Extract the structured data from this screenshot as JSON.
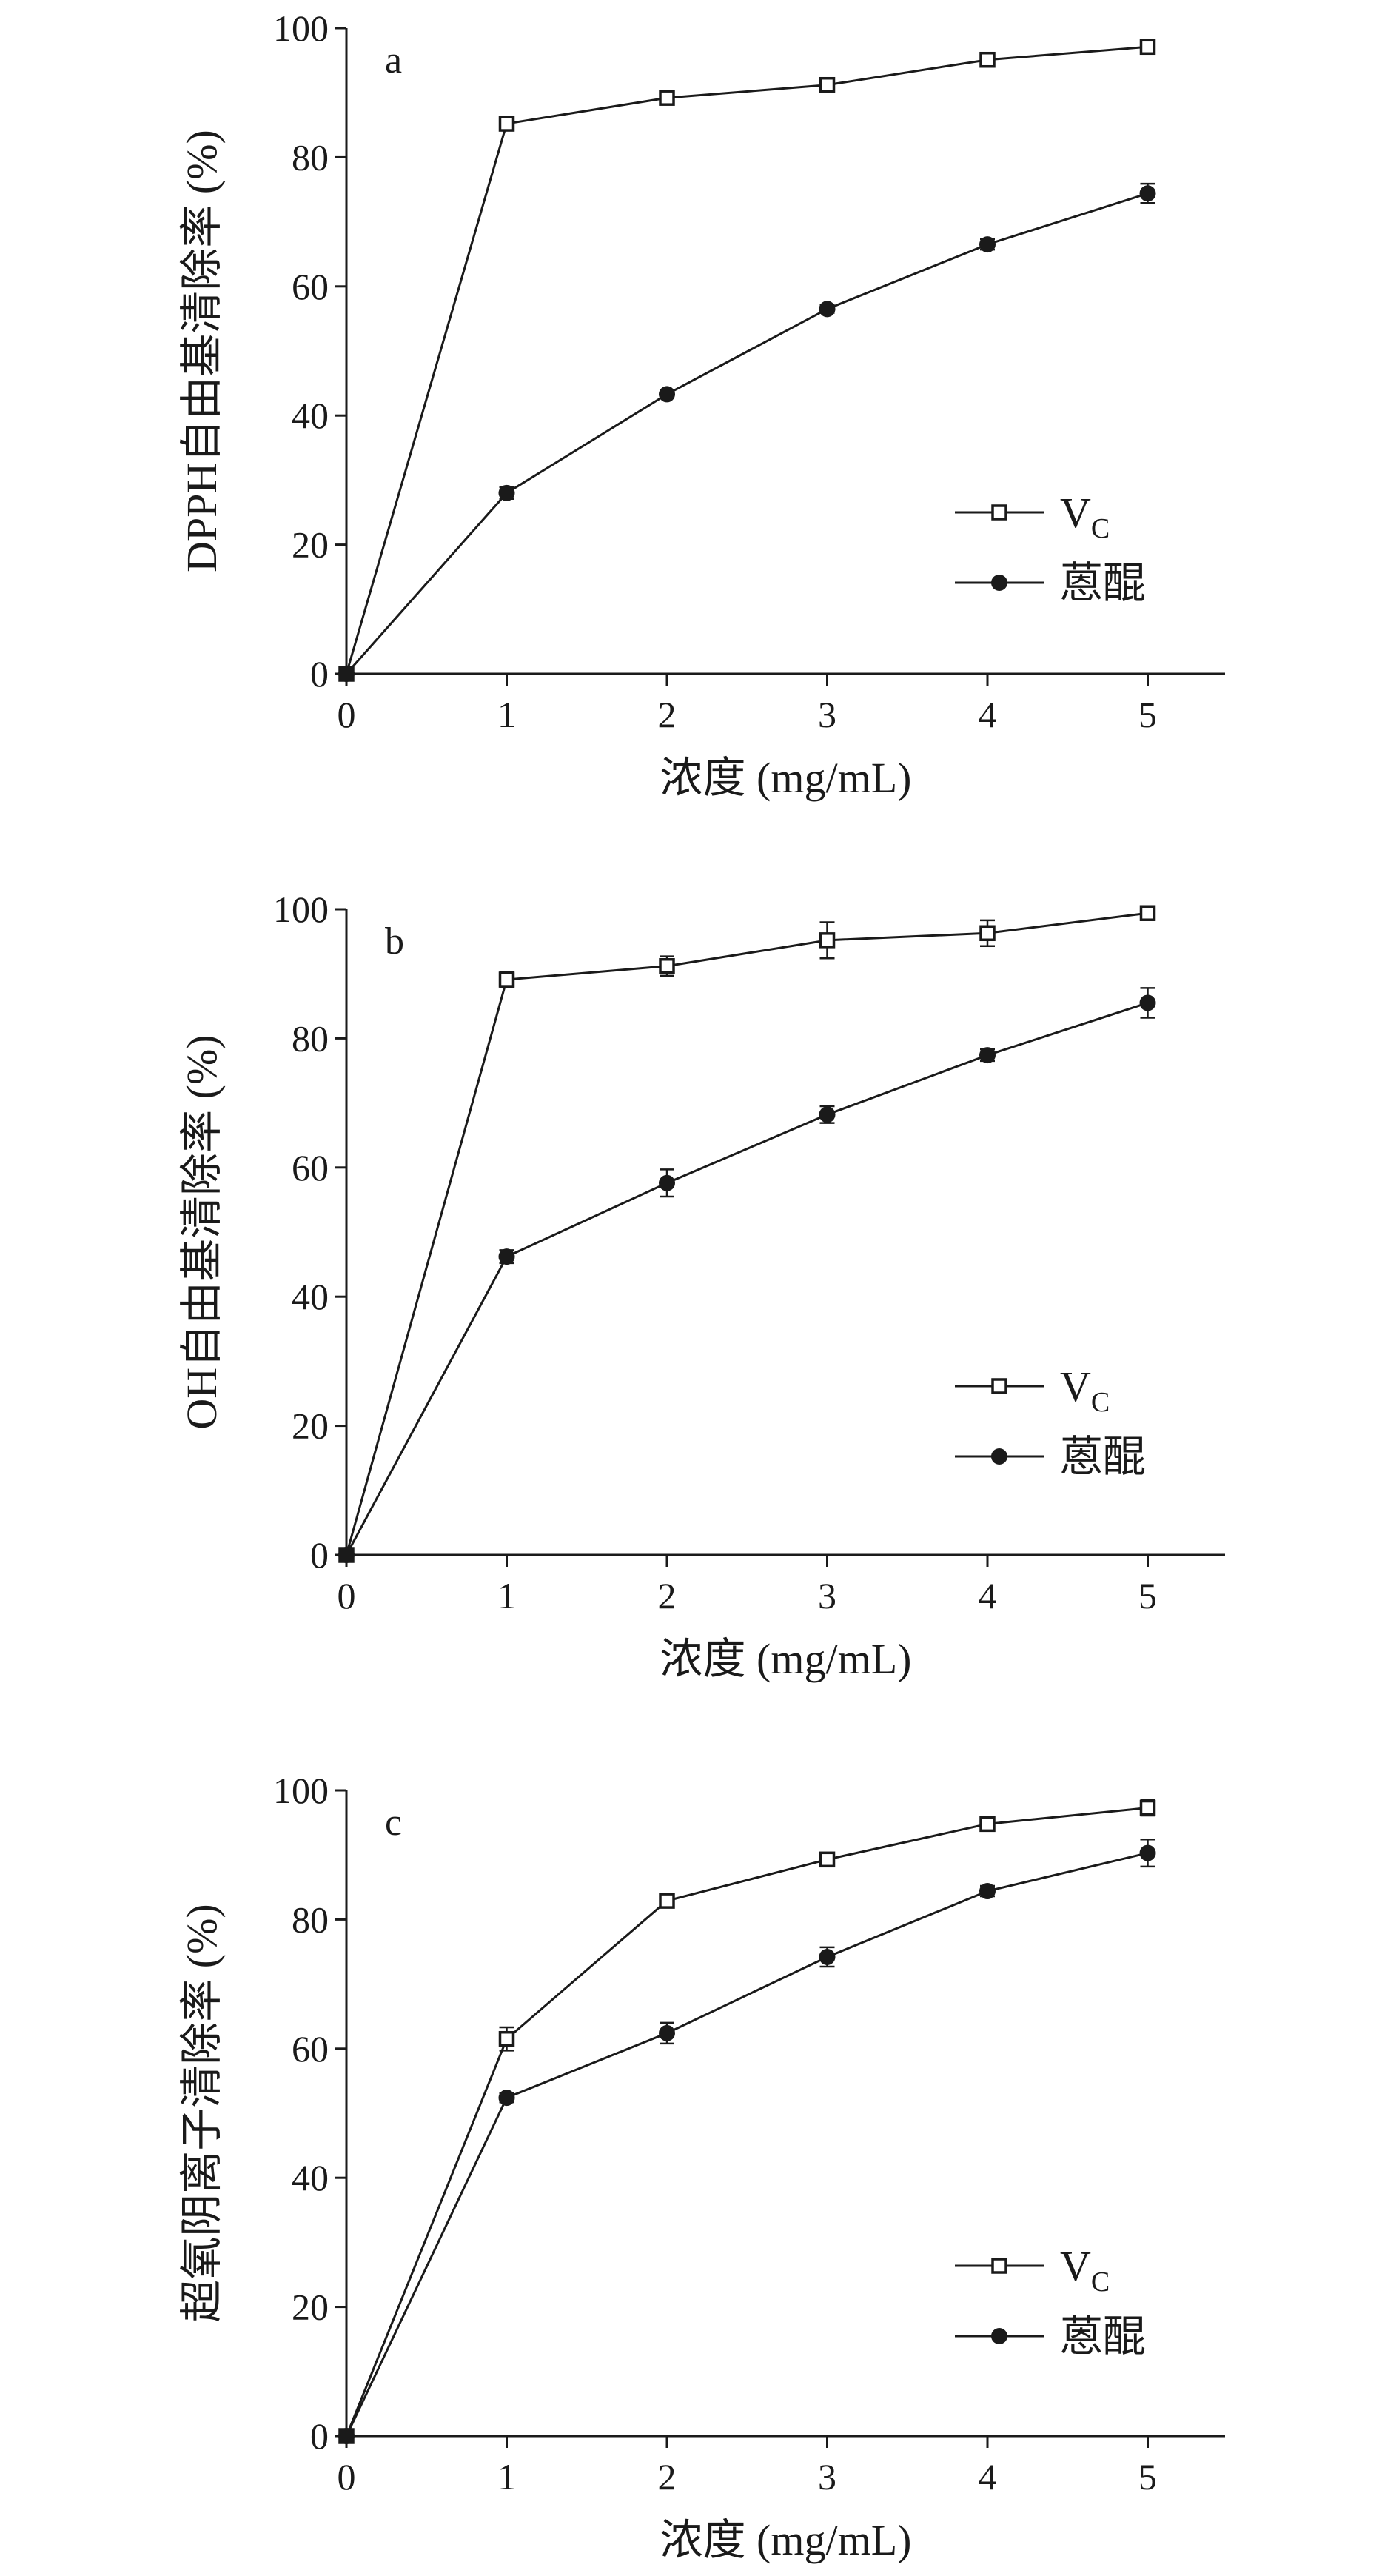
{
  "chart_data": [
    {
      "type": "line",
      "panel_label": "a",
      "xlabel": "浓度 (mg/mL)",
      "ylabel": "DPPH自由基清除率 (%)",
      "x": [
        0,
        1,
        2,
        3,
        4,
        5
      ],
      "xlim": [
        0,
        5.5
      ],
      "ylim": [
        0,
        100
      ],
      "xticks": [
        "0",
        "1",
        "2",
        "3",
        "4",
        "5"
      ],
      "yticks": [
        "0",
        "20",
        "40",
        "60",
        "80",
        "100"
      ],
      "legend_position": "lower-right",
      "grid": false,
      "series": [
        {
          "name": "V",
          "name_sub": "C",
          "marker": "open-square",
          "values": [
            0,
            85.2,
            89.2,
            91.2,
            95.1,
            97.1
          ],
          "errors": [
            0,
            0.6,
            0.6,
            0.6,
            0.6,
            0.6
          ]
        },
        {
          "name": "蒽醌",
          "marker": "filled-circle",
          "values": [
            0,
            28.0,
            43.3,
            56.5,
            66.5,
            74.4
          ],
          "errors": [
            0,
            0.9,
            0.6,
            0.6,
            0.8,
            1.5
          ]
        }
      ]
    },
    {
      "type": "line",
      "panel_label": "b",
      "xlabel": "浓度 (mg/mL)",
      "ylabel": "OH自由基清除率 (%)",
      "x": [
        0,
        1,
        2,
        3,
        4,
        5
      ],
      "xlim": [
        0,
        5.5
      ],
      "ylim": [
        0,
        100
      ],
      "xticks": [
        "0",
        "1",
        "2",
        "3",
        "4",
        "5"
      ],
      "yticks": [
        "0",
        "20",
        "40",
        "60",
        "80",
        "100"
      ],
      "legend_position": "lower-right",
      "grid": false,
      "series": [
        {
          "name": "V",
          "name_sub": "C",
          "marker": "open-square",
          "values": [
            0,
            89.1,
            91.2,
            95.2,
            96.3,
            99.4
          ],
          "errors": [
            0,
            1.2,
            1.5,
            2.8,
            2.0,
            0.6
          ]
        },
        {
          "name": "蒽醌",
          "marker": "filled-circle",
          "values": [
            0,
            46.2,
            57.6,
            68.2,
            77.4,
            85.5
          ],
          "errors": [
            0,
            1.0,
            2.1,
            1.3,
            0.9,
            2.3
          ]
        }
      ]
    },
    {
      "type": "line",
      "panel_label": "c",
      "xlabel": "浓度 (mg/mL)",
      "ylabel": "超氧阴离子清除率 (%)",
      "x": [
        0,
        1,
        2,
        3,
        4,
        5
      ],
      "xlim": [
        0,
        5.5
      ],
      "ylim": [
        0,
        100
      ],
      "xticks": [
        "0",
        "1",
        "2",
        "3",
        "4",
        "5"
      ],
      "yticks": [
        "0",
        "20",
        "40",
        "60",
        "80",
        "100"
      ],
      "legend_position": "lower-right",
      "grid": false,
      "series": [
        {
          "name": "V",
          "name_sub": "C",
          "marker": "open-square",
          "values": [
            0,
            61.5,
            82.9,
            89.3,
            94.8,
            97.3
          ],
          "errors": [
            0,
            1.8,
            1.0,
            0.6,
            0.6,
            1.2
          ]
        },
        {
          "name": "蒽醌",
          "marker": "filled-circle",
          "values": [
            0,
            52.4,
            62.4,
            74.2,
            84.4,
            90.3
          ],
          "errors": [
            0,
            0.7,
            1.6,
            1.5,
            0.8,
            2.1
          ]
        }
      ]
    }
  ]
}
